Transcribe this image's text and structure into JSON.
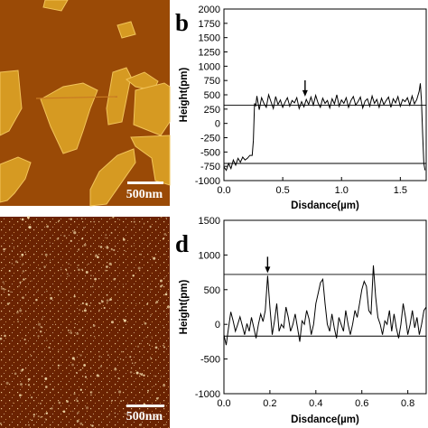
{
  "panels": {
    "a": {
      "scale_bar_label": "500nm",
      "background": "#9a4a06",
      "flake_color": "#d69a22"
    },
    "c": {
      "scale_bar_label": "500nm",
      "background": "#6b2302",
      "dot_color": "#f0d8a8"
    }
  },
  "chart_data": [
    {
      "panel_label": "b",
      "type": "line",
      "xlabel": "Disdance(µm)",
      "ylabel": "Height(pm)",
      "xlim": [
        0.0,
        1.72
      ],
      "ylim": [
        -1000,
        2000
      ],
      "x_ticks": [
        "0.0",
        "0.5",
        "1.0",
        "1.5"
      ],
      "x_tick_values": [
        0.0,
        0.5,
        1.0,
        1.5
      ],
      "y_ticks": [
        "-1000",
        "-750",
        "-500",
        "-250",
        "0",
        "250",
        "500",
        "750",
        "1000",
        "1250",
        "1500",
        "1750",
        "2000"
      ],
      "y_tick_values": [
        -1000,
        -750,
        -500,
        -250,
        0,
        250,
        500,
        750,
        1000,
        1250,
        1500,
        1750,
        2000
      ],
      "reference_lines_y": [
        320,
        -700
      ],
      "arrow_at": {
        "x": 0.69,
        "y": 470
      },
      "series": [
        {
          "x": [
            0.0,
            0.02,
            0.04,
            0.06,
            0.08,
            0.1,
            0.12,
            0.14,
            0.16,
            0.18,
            0.2,
            0.22,
            0.24,
            0.25,
            0.26,
            0.27,
            0.28,
            0.3,
            0.32,
            0.34,
            0.36,
            0.38,
            0.4,
            0.42,
            0.44,
            0.46,
            0.48,
            0.5,
            0.52,
            0.54,
            0.56,
            0.58,
            0.6,
            0.62,
            0.64,
            0.66,
            0.68,
            0.7,
            0.72,
            0.74,
            0.76,
            0.78,
            0.8,
            0.82,
            0.84,
            0.86,
            0.88,
            0.9,
            0.92,
            0.94,
            0.96,
            0.98,
            1.0,
            1.02,
            1.04,
            1.06,
            1.08,
            1.1,
            1.12,
            1.14,
            1.16,
            1.18,
            1.2,
            1.22,
            1.24,
            1.26,
            1.28,
            1.3,
            1.32,
            1.34,
            1.36,
            1.38,
            1.4,
            1.42,
            1.44,
            1.46,
            1.48,
            1.5,
            1.52,
            1.54,
            1.56,
            1.58,
            1.6,
            1.62,
            1.64,
            1.66,
            1.67,
            1.68,
            1.69,
            1.7,
            1.71
          ],
          "y": [
            -760,
            -820,
            -700,
            -790,
            -640,
            -730,
            -610,
            -680,
            -590,
            -640,
            -610,
            -560,
            -560,
            -300,
            350,
            300,
            480,
            240,
            450,
            350,
            280,
            500,
            380,
            260,
            470,
            330,
            410,
            280,
            370,
            450,
            300,
            400,
            360,
            450,
            260,
            380,
            290,
            420,
            330,
            460,
            320,
            490,
            360,
            280,
            440,
            350,
            400,
            270,
            430,
            340,
            500,
            300,
            410,
            350,
            450,
            280,
            400,
            470,
            320,
            380,
            460,
            270,
            390,
            430,
            300,
            480,
            350,
            420,
            280,
            440,
            330,
            400,
            460,
            280,
            430,
            360,
            470,
            300,
            420,
            380,
            450,
            320,
            480,
            340,
            420,
            560,
            700,
            380,
            -200,
            -700,
            -820
          ]
        }
      ]
    },
    {
      "panel_label": "d",
      "type": "line",
      "xlabel": "Disdance(µm)",
      "ylabel": "Height(pm)",
      "xlim": [
        0.0,
        0.88
      ],
      "ylim": [
        -1000,
        1500
      ],
      "x_ticks": [
        "0.0",
        "0.2",
        "0.4",
        "0.6",
        "0.8"
      ],
      "x_tick_values": [
        0.0,
        0.2,
        0.4,
        0.6,
        0.8
      ],
      "y_ticks": [
        "-1000",
        "-500",
        "0",
        "500",
        "1000",
        "1500"
      ],
      "y_tick_values": [
        -1000,
        -500,
        0,
        500,
        1000,
        1500
      ],
      "reference_lines_y": [
        720,
        -170
      ],
      "arrow_at": {
        "x": 0.19,
        "y": 740
      },
      "series": [
        {
          "x": [
            0.0,
            0.01,
            0.02,
            0.03,
            0.04,
            0.05,
            0.06,
            0.07,
            0.08,
            0.09,
            0.1,
            0.11,
            0.12,
            0.13,
            0.14,
            0.15,
            0.16,
            0.17,
            0.18,
            0.19,
            0.2,
            0.21,
            0.22,
            0.23,
            0.24,
            0.25,
            0.26,
            0.27,
            0.28,
            0.29,
            0.3,
            0.31,
            0.32,
            0.33,
            0.34,
            0.35,
            0.36,
            0.37,
            0.38,
            0.39,
            0.4,
            0.41,
            0.42,
            0.43,
            0.44,
            0.45,
            0.46,
            0.47,
            0.48,
            0.49,
            0.5,
            0.51,
            0.52,
            0.53,
            0.54,
            0.55,
            0.56,
            0.57,
            0.58,
            0.59,
            0.6,
            0.61,
            0.62,
            0.63,
            0.64,
            0.65,
            0.66,
            0.67,
            0.68,
            0.69,
            0.7,
            0.71,
            0.72,
            0.73,
            0.74,
            0.75,
            0.76,
            0.77,
            0.78,
            0.79,
            0.8,
            0.81,
            0.82,
            0.83,
            0.84,
            0.85,
            0.86,
            0.87,
            0.88
          ],
          "y": [
            -150,
            -300,
            -50,
            180,
            50,
            -100,
            0,
            110,
            -20,
            -150,
            10,
            -100,
            100,
            -50,
            -200,
            0,
            150,
            40,
            200,
            700,
            250,
            -150,
            50,
            300,
            -100,
            0,
            -50,
            250,
            100,
            -100,
            0,
            150,
            -50,
            -250,
            50,
            0,
            200,
            80,
            -150,
            0,
            300,
            450,
            600,
            650,
            300,
            0,
            -100,
            150,
            -50,
            -200,
            100,
            0,
            -100,
            200,
            0,
            -150,
            0,
            200,
            100,
            300,
            500,
            620,
            550,
            200,
            150,
            850,
            400,
            100,
            0,
            -150,
            50,
            0,
            200,
            -100,
            150,
            -50,
            -200,
            0,
            300,
            100,
            -150,
            0,
            200,
            -50,
            100,
            -150,
            0,
            200,
            250
          ]
        }
      ]
    }
  ]
}
